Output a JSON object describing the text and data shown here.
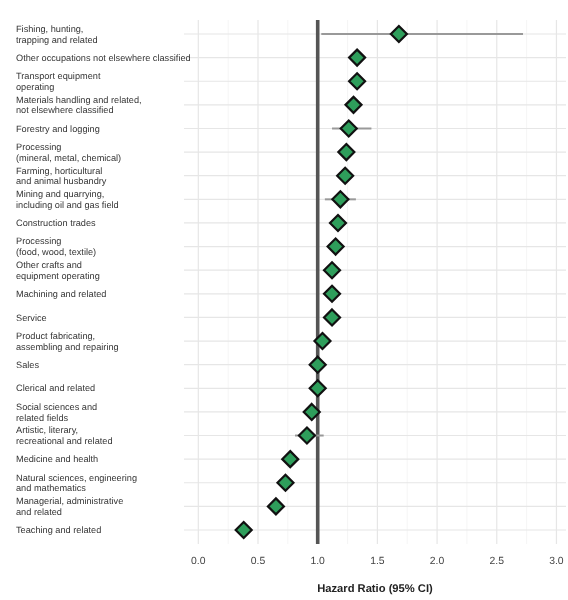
{
  "chart_data": {
    "type": "scatter",
    "orientation": "horizontal",
    "xlabel": "Hazard Ratio (95% CI)",
    "categories": [
      "Fishing, hunting,\ntrapping and related",
      "Other occupations not elsewhere classified",
      "Transport equipment\noperating",
      "Materials handling and related,\nnot elsewhere classified",
      "Forestry and logging",
      "Processing\n(mineral, metal, chemical)",
      "Farming, horticultural\nand animal husbandry",
      "Mining and quarrying,\nincluding oil and gas field",
      "Construction trades",
      "Processing\n(food, wood, textile)",
      "Other crafts and\nequipment operating",
      "Machining and related",
      "Service",
      "Product fabricating,\nassembling and repairing",
      "Sales",
      "Clerical and related",
      "Social sciences and\nrelated fields",
      "Artistic, literary,\nrecreational and related",
      "Medicine and health",
      "Natural sciences, engineering\nand mathematics",
      "Managerial, administrative\nand related",
      "Teaching and related"
    ],
    "values": [
      1.68,
      1.33,
      1.33,
      1.3,
      1.26,
      1.24,
      1.23,
      1.19,
      1.17,
      1.15,
      1.12,
      1.12,
      1.12,
      1.04,
      1.0,
      1.0,
      0.95,
      0.91,
      0.77,
      0.73,
      0.65,
      0.38
    ],
    "errors": [
      [
        1.03,
        2.72
      ],
      null,
      null,
      null,
      [
        1.12,
        1.45
      ],
      null,
      null,
      [
        1.06,
        1.32
      ],
      null,
      null,
      null,
      null,
      null,
      null,
      null,
      null,
      null,
      [
        0.81,
        1.05
      ],
      null,
      null,
      null,
      null
    ],
    "color": "#2e9e5b",
    "marker": "diamond",
    "grid": true,
    "xlim": [
      -0.12,
      3.08
    ],
    "xticks": [
      {
        "value": 0,
        "label": "0.0"
      },
      {
        "value": 0.5,
        "label": "0.5"
      },
      {
        "value": 1,
        "label": "1.0"
      },
      {
        "value": 1.5,
        "label": "1.5"
      },
      {
        "value": 2,
        "label": "2.0"
      },
      {
        "value": 2.5,
        "label": "2.5"
      },
      {
        "value": 3,
        "label": "3.0"
      }
    ],
    "ref_lines": [
      {
        "axis": "x",
        "value": 1,
        "color": "#555555"
      }
    ]
  }
}
